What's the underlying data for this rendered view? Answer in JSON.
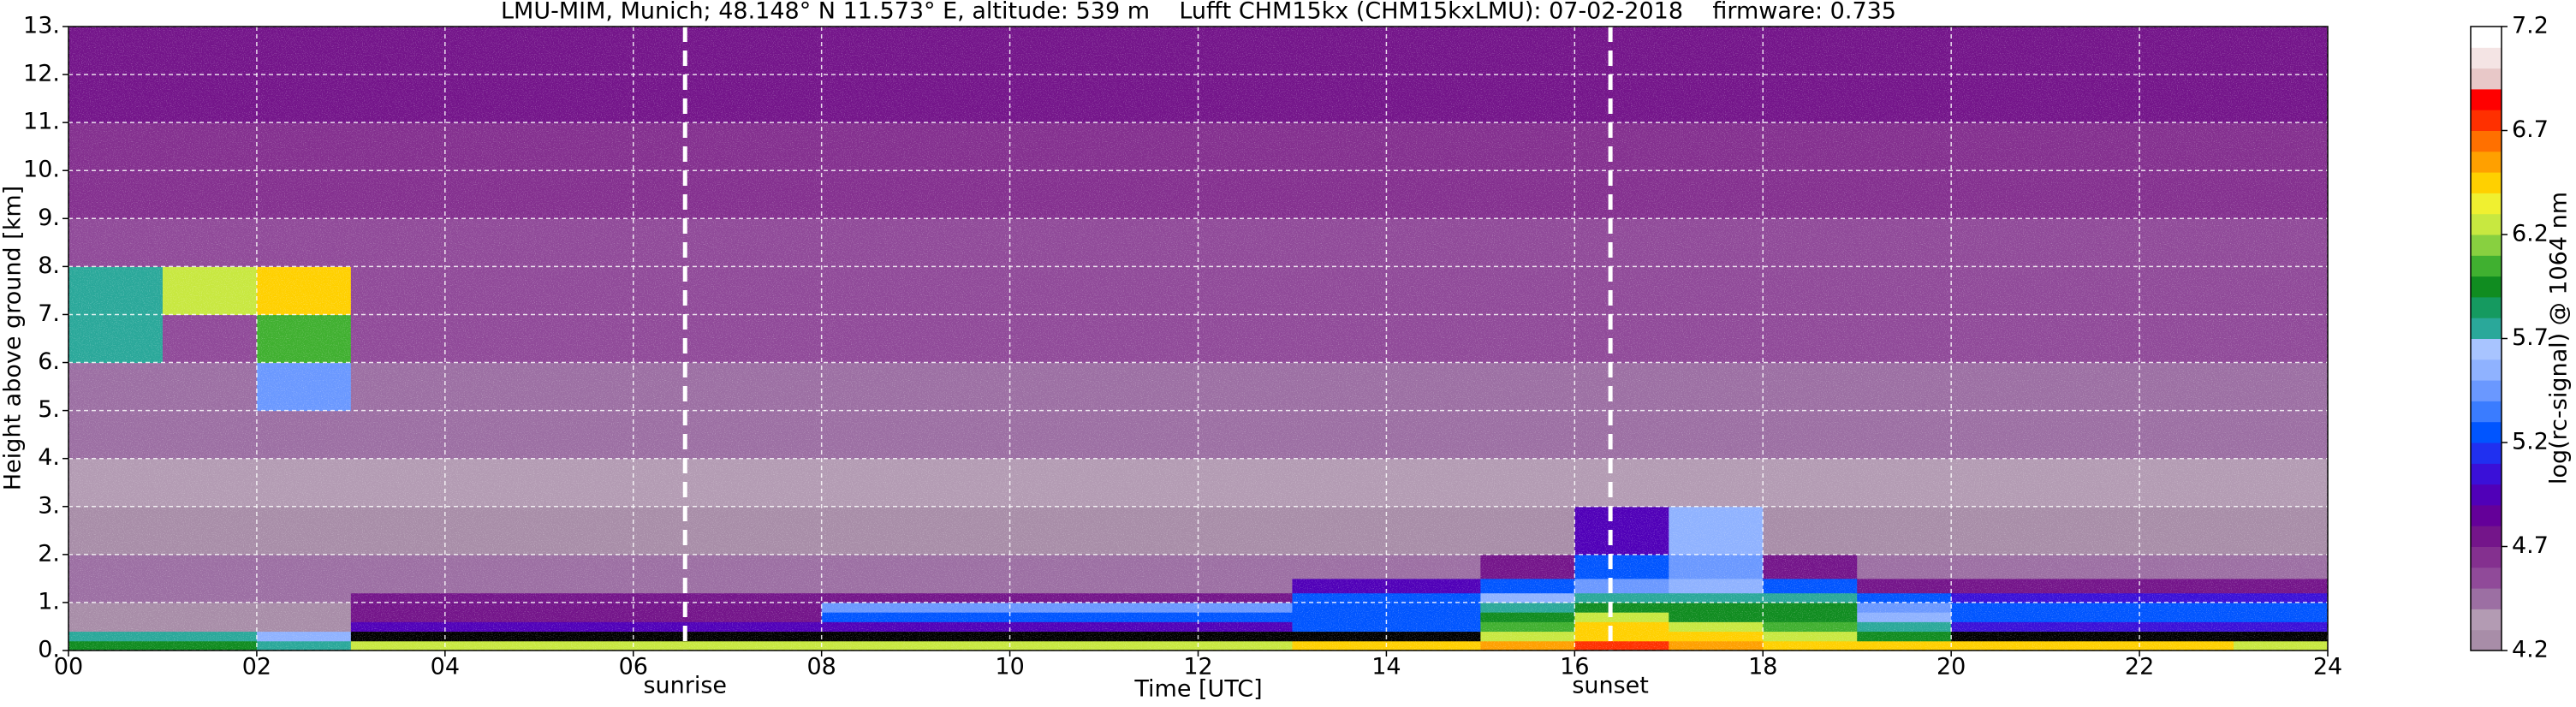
{
  "chart_data": {
    "type": "heatmap",
    "title": "LMU-MIM, Munich; 48.148° N 11.573° E, altitude: 539 m    Lufft CHM15kx (CHM15kxLMU): 07-02-2018    firmware: 0.735",
    "x_label": "Time [UTC]",
    "y_label": "Height above ground [km]",
    "colorbar_label": "log(rc-signal) @ 1064 nm",
    "xlim": [
      0,
      24
    ],
    "ylim": [
      0,
      13
    ],
    "xticks": [
      {
        "value": 0,
        "label": "00"
      },
      {
        "value": 2,
        "label": "02"
      },
      {
        "value": 4,
        "label": "04"
      },
      {
        "value": 6,
        "label": "06"
      },
      {
        "value": 8,
        "label": "08"
      },
      {
        "value": 10,
        "label": "10"
      },
      {
        "value": 12,
        "label": "12"
      },
      {
        "value": 14,
        "label": "14"
      },
      {
        "value": 16,
        "label": "16"
      },
      {
        "value": 18,
        "label": "18"
      },
      {
        "value": 20,
        "label": "20"
      },
      {
        "value": 22,
        "label": "22"
      },
      {
        "value": 24,
        "label": "24"
      }
    ],
    "yticks": [
      {
        "value": 0,
        "label": "0."
      },
      {
        "value": 1,
        "label": "1."
      },
      {
        "value": 2,
        "label": "2."
      },
      {
        "value": 3,
        "label": "3."
      },
      {
        "value": 4,
        "label": "4."
      },
      {
        "value": 5,
        "label": "5."
      },
      {
        "value": 6,
        "label": "6."
      },
      {
        "value": 7,
        "label": "7."
      },
      {
        "value": 8,
        "label": "8."
      },
      {
        "value": 9,
        "label": "9."
      },
      {
        "value": 10,
        "label": "10."
      },
      {
        "value": 11,
        "label": "11."
      },
      {
        "value": 12,
        "label": "12."
      },
      {
        "value": 13,
        "label": "13."
      }
    ],
    "grid": true,
    "clim": [
      4.2,
      7.2
    ],
    "cticks": [
      4.2,
      4.7,
      5.2,
      5.7,
      6.2,
      6.7,
      7.2
    ],
    "under_color": "#000000",
    "colors": [
      "#a88da8",
      "#b39bb3",
      "#9c6fa3",
      "#904a99",
      "#84308f",
      "#74158a",
      "#640099",
      "#5000b8",
      "#3a10d8",
      "#2030f0",
      "#0055ff",
      "#3a7cff",
      "#6a98ff",
      "#8fb2ff",
      "#a8c4ff",
      "#2aa89a",
      "#159a60",
      "#108c20",
      "#40b030",
      "#88d040",
      "#c8e840",
      "#f0f030",
      "#ffd000",
      "#ffa000",
      "#ff7000",
      "#ff3000",
      "#ff0000",
      "#e8c8c8",
      "#f4e4e4",
      "#ffffff"
    ],
    "annotations": [
      {
        "x": 6.55,
        "label": "sunrise"
      },
      {
        "x": 16.38,
        "label": "sunset"
      }
    ],
    "x_edges": [
      0,
      1,
      2,
      3,
      4,
      5,
      6,
      7,
      8,
      9,
      10,
      11,
      12,
      13,
      14,
      15,
      16,
      17,
      18,
      19,
      20,
      21,
      22,
      23,
      24
    ],
    "y_edges": [
      0,
      0.2,
      0.4,
      0.6,
      0.8,
      1.0,
      1.2,
      1.5,
      2,
      3,
      4,
      5,
      6,
      7,
      8,
      9,
      10,
      11,
      12,
      13
    ],
    "z": [
      [
        5.9,
        5.9,
        5.8,
        6.3,
        6.3,
        6.3,
        6.3,
        6.3,
        6.3,
        6.3,
        6.3,
        6.3,
        6.3,
        6.4,
        6.5,
        6.6,
        6.7,
        6.6,
        6.5,
        6.4,
        6.4,
        6.5,
        6.4,
        6.3
      ],
      [
        5.7,
        5.7,
        5.6,
        4.0,
        4.0,
        4.0,
        4.0,
        4.0,
        4.0,
        4.0,
        4.0,
        4.0,
        4.0,
        4.0,
        4.0,
        6.3,
        6.5,
        6.4,
        6.2,
        6.0,
        4.0,
        4.0,
        4.0,
        4.0
      ],
      [
        4.3,
        4.3,
        4.3,
        4.9,
        4.9,
        4.9,
        4.9,
        4.9,
        4.9,
        4.9,
        4.9,
        4.9,
        4.9,
        5.2,
        5.2,
        6.1,
        6.4,
        6.3,
        6.1,
        5.8,
        5.1,
        5.1,
        5.1,
        5.1
      ],
      [
        4.3,
        4.3,
        4.3,
        4.8,
        4.8,
        4.8,
        4.8,
        4.8,
        5.3,
        5.3,
        5.3,
        5.3,
        5.3,
        5.3,
        5.3,
        5.9,
        6.2,
        6.0,
        6.0,
        5.6,
        5.3,
        5.3,
        5.3,
        5.3
      ],
      [
        4.3,
        4.3,
        4.3,
        4.8,
        4.8,
        4.8,
        4.8,
        4.8,
        5.4,
        5.4,
        5.4,
        5.4,
        5.4,
        5.3,
        5.3,
        5.8,
        6.0,
        5.9,
        5.9,
        5.4,
        5.3,
        5.3,
        5.3,
        5.3
      ],
      [
        4.4,
        4.4,
        4.5,
        4.7,
        4.7,
        4.7,
        4.7,
        4.7,
        4.7,
        4.7,
        4.7,
        4.7,
        4.7,
        5.2,
        5.2,
        5.6,
        5.8,
        5.8,
        5.8,
        5.2,
        5.1,
        5.1,
        5.1,
        5.1
      ],
      [
        4.5,
        4.5,
        4.5,
        4.5,
        4.5,
        4.5,
        4.5,
        4.5,
        4.5,
        4.5,
        4.5,
        4.5,
        4.5,
        4.9,
        4.9,
        5.2,
        5.4,
        5.6,
        5.3,
        4.8,
        4.7,
        4.7,
        4.7,
        4.7
      ],
      [
        4.4,
        4.4,
        4.4,
        4.4,
        4.4,
        4.4,
        4.4,
        4.4,
        4.4,
        4.4,
        4.4,
        4.4,
        4.4,
        4.4,
        4.4,
        4.8,
        5.2,
        5.5,
        4.7,
        4.4,
        4.4,
        4.4,
        4.4,
        4.4
      ],
      [
        4.3,
        4.3,
        4.3,
        4.3,
        4.3,
        4.3,
        4.3,
        4.3,
        4.3,
        4.3,
        4.3,
        4.3,
        4.3,
        4.3,
        4.3,
        4.3,
        4.9,
        5.6,
        4.3,
        4.3,
        4.3,
        4.3,
        4.3,
        4.3
      ],
      [
        4.35,
        4.35,
        4.35,
        4.35,
        4.35,
        4.35,
        4.35,
        4.35,
        4.35,
        4.35,
        4.35,
        4.35,
        4.35,
        4.35,
        4.35,
        4.35,
        4.35,
        4.35,
        4.35,
        4.35,
        4.35,
        4.35,
        4.35,
        4.35
      ],
      [
        4.4,
        4.4,
        4.4,
        4.4,
        4.4,
        4.4,
        4.4,
        4.4,
        4.4,
        4.4,
        4.4,
        4.4,
        4.4,
        4.4,
        4.4,
        4.4,
        4.4,
        4.4,
        4.4,
        4.4,
        4.4,
        4.4,
        4.4,
        4.4
      ],
      [
        4.5,
        4.5,
        5.5,
        4.5,
        4.5,
        4.5,
        4.5,
        4.5,
        4.5,
        4.5,
        4.5,
        4.5,
        4.5,
        4.5,
        4.5,
        4.5,
        4.5,
        4.5,
        4.5,
        4.5,
        4.5,
        4.5,
        4.5,
        4.5
      ],
      [
        5.7,
        4.6,
        6.1,
        4.6,
        4.6,
        4.6,
        4.6,
        4.6,
        4.6,
        4.6,
        4.6,
        4.6,
        4.6,
        4.6,
        4.6,
        4.6,
        4.6,
        4.6,
        4.6,
        4.6,
        4.6,
        4.6,
        4.6,
        4.6
      ],
      [
        5.8,
        6.2,
        6.5,
        4.6,
        4.6,
        4.6,
        4.6,
        4.6,
        4.6,
        4.6,
        4.6,
        4.6,
        4.6,
        4.6,
        4.6,
        4.6,
        4.6,
        4.6,
        4.6,
        4.6,
        4.6,
        4.6,
        4.6,
        4.6
      ],
      [
        4.6,
        4.6,
        4.6,
        4.6,
        4.6,
        4.6,
        4.6,
        4.6,
        4.6,
        4.6,
        4.6,
        4.6,
        4.6,
        4.6,
        4.6,
        4.6,
        4.6,
        4.6,
        4.6,
        4.6,
        4.6,
        4.6,
        4.6,
        4.6
      ],
      [
        4.65,
        4.65,
        4.65,
        4.65,
        4.65,
        4.65,
        4.65,
        4.65,
        4.65,
        4.65,
        4.65,
        4.65,
        4.65,
        4.65,
        4.65,
        4.65,
        4.65,
        4.65,
        4.65,
        4.65,
        4.65,
        4.65,
        4.65,
        4.65
      ],
      [
        4.65,
        4.65,
        4.65,
        4.65,
        4.65,
        4.65,
        4.65,
        4.65,
        4.65,
        4.65,
        4.65,
        4.65,
        4.65,
        4.65,
        4.65,
        4.65,
        4.65,
        4.65,
        4.65,
        4.65,
        4.65,
        4.65,
        4.65,
        4.65
      ],
      [
        4.7,
        4.7,
        4.7,
        4.7,
        4.7,
        4.7,
        4.7,
        4.7,
        4.7,
        4.7,
        4.7,
        4.7,
        4.7,
        4.7,
        4.7,
        4.7,
        4.7,
        4.7,
        4.7,
        4.7,
        4.7,
        4.7,
        4.7,
        4.7
      ],
      [
        4.7,
        4.7,
        4.7,
        4.7,
        4.7,
        4.7,
        4.7,
        4.7,
        4.7,
        4.7,
        4.7,
        4.7,
        4.7,
        4.7,
        4.7,
        4.7,
        4.7,
        4.7,
        4.7,
        4.7,
        4.7,
        4.7,
        4.7,
        4.7
      ]
    ]
  }
}
